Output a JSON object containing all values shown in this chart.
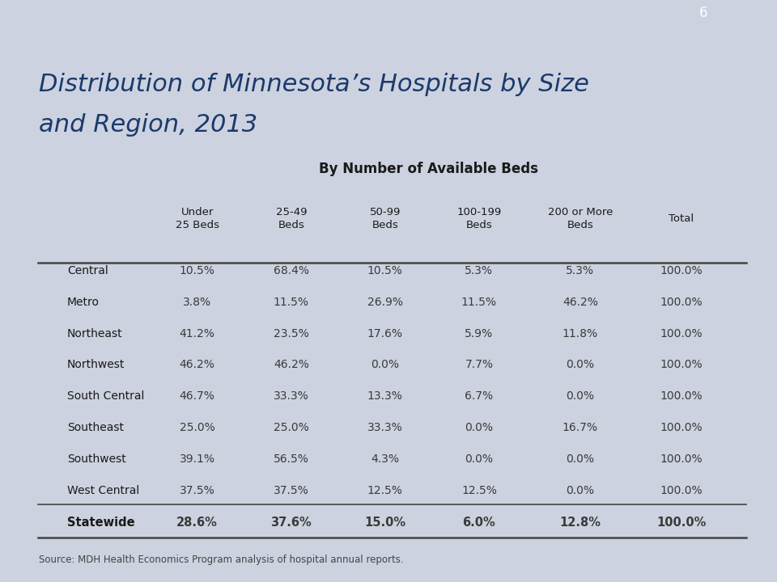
{
  "title_line1": "Distribution of Minnesota’s Hospitals by Size",
  "title_line2": "and Region, 2013",
  "subtitle": "By Number of Available Beds",
  "page_number": "6",
  "col_headers": [
    "Under\n25 Beds",
    "25-49\nBeds",
    "50-99\nBeds",
    "100-199\nBeds",
    "200 or More\nBeds",
    "Total"
  ],
  "row_labels": [
    "Central",
    "Metro",
    "Northeast",
    "Northwest",
    "South Central",
    "Southeast",
    "Southwest",
    "West Central",
    "Statewide"
  ],
  "data": [
    [
      "10.5%",
      "68.4%",
      "10.5%",
      "5.3%",
      "5.3%",
      "100.0%"
    ],
    [
      "3.8%",
      "11.5%",
      "26.9%",
      "11.5%",
      "46.2%",
      "100.0%"
    ],
    [
      "41.2%",
      "23.5%",
      "17.6%",
      "5.9%",
      "11.8%",
      "100.0%"
    ],
    [
      "46.2%",
      "46.2%",
      "0.0%",
      "7.7%",
      "0.0%",
      "100.0%"
    ],
    [
      "46.7%",
      "33.3%",
      "13.3%",
      "6.7%",
      "0.0%",
      "100.0%"
    ],
    [
      "25.0%",
      "25.0%",
      "33.3%",
      "0.0%",
      "16.7%",
      "100.0%"
    ],
    [
      "39.1%",
      "56.5%",
      "4.3%",
      "0.0%",
      "0.0%",
      "100.0%"
    ],
    [
      "37.5%",
      "37.5%",
      "12.5%",
      "12.5%",
      "0.0%",
      "100.0%"
    ],
    [
      "28.6%",
      "37.6%",
      "15.0%",
      "6.0%",
      "12.8%",
      "100.0%"
    ]
  ],
  "source_text": "Source: MDH Health Economics Program analysis of hospital annual reports.",
  "bg_color_top": "#1a3a6b",
  "bg_color_main": "#cdd2e0",
  "title_color": "#1a3a6b",
  "subtitle_color": "#1a1a1a",
  "header_color": "#1a1a1a",
  "row_label_color": "#1a1a1a",
  "data_color": "#3a3a3a",
  "bold_row_index": 8,
  "source_color": "#444444"
}
